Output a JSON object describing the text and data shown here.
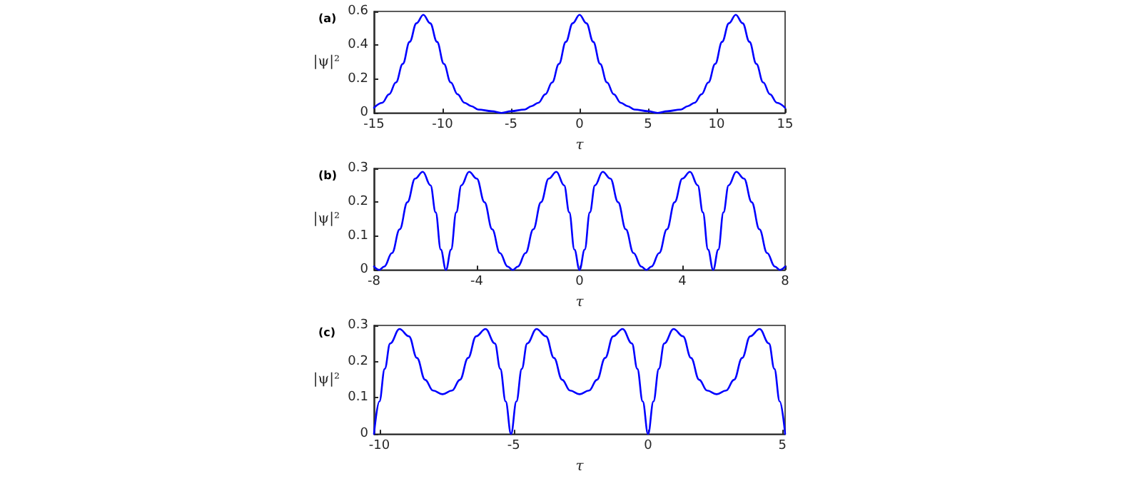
{
  "chart_data": [
    {
      "type": "line",
      "title": "(a)",
      "xlabel": "τ",
      "ylabel": "|ψ|²",
      "grid": false,
      "marker": "none",
      "line_style": "solid",
      "xlim": [
        -15,
        15
      ],
      "ylim": [
        0,
        0.6
      ],
      "xticks": [
        -15,
        -10,
        -5,
        0,
        5,
        10,
        15
      ],
      "yticks": [
        0,
        0.2,
        0.4,
        0.6
      ],
      "series": [
        {
          "color": "#0000ff",
          "x": [
            -15,
            -14.4,
            -13.9,
            -13.4,
            -12.9,
            -12.4,
            -11.9,
            -11.4,
            -10.9,
            -10.4,
            -9.9,
            -9.4,
            -8.9,
            -8.4,
            -7.9,
            -7.4,
            -6.4,
            -5.7,
            -5,
            -4,
            -3.5,
            -3,
            -2.5,
            -2,
            -1.5,
            -1,
            -0.5,
            0,
            0.5,
            1,
            1.5,
            2,
            2.5,
            3,
            3.5,
            4,
            5,
            5.7,
            6.4,
            7.4,
            7.9,
            8.4,
            8.9,
            9.4,
            9.9,
            10.4,
            10.9,
            11.4,
            11.9,
            12.4,
            12.9,
            13.4,
            13.9,
            14.4,
            15
          ],
          "values": [
            0.03,
            0.06,
            0.11,
            0.18,
            0.29,
            0.42,
            0.53,
            0.58,
            0.53,
            0.42,
            0.29,
            0.18,
            0.11,
            0.06,
            0.04,
            0.02,
            0.01,
            0,
            0.01,
            0.02,
            0.04,
            0.06,
            0.11,
            0.18,
            0.29,
            0.42,
            0.53,
            0.58,
            0.53,
            0.42,
            0.29,
            0.18,
            0.11,
            0.06,
            0.04,
            0.02,
            0.01,
            0,
            0.01,
            0.02,
            0.04,
            0.06,
            0.11,
            0.18,
            0.29,
            0.42,
            0.53,
            0.58,
            0.53,
            0.42,
            0.29,
            0.18,
            0.11,
            0.06,
            0.03
          ]
        }
      ]
    },
    {
      "type": "line",
      "title": "(b)",
      "xlabel": "τ",
      "ylabel": "|ψ|²",
      "grid": false,
      "marker": "none",
      "line_style": "solid",
      "xlim": [
        -8,
        8
      ],
      "ylim": [
        0,
        0.3
      ],
      "xticks": [
        -8,
        -4,
        0,
        4,
        8
      ],
      "yticks": [
        0,
        0.1,
        0.2,
        0.3
      ],
      "series": [
        {
          "color": "#0000ff",
          "x": [
            -8,
            -7.8,
            -7.6,
            -7.3,
            -7,
            -6.7,
            -6.4,
            -6.1,
            -5.8,
            -5.6,
            -5.4,
            -5.2,
            -5,
            -4.8,
            -4.6,
            -4.3,
            -4,
            -3.7,
            -3.4,
            -3.1,
            -2.8,
            -2.6,
            -2.4,
            -2.1,
            -1.8,
            -1.5,
            -1.2,
            -0.9,
            -0.6,
            -0.4,
            -0.2,
            0,
            0.2,
            0.4,
            0.6,
            0.9,
            1.2,
            1.5,
            1.8,
            2.1,
            2.4,
            2.6,
            2.8,
            3.1,
            3.4,
            3.7,
            4,
            4.3,
            4.6,
            4.8,
            5,
            5.2,
            5.4,
            5.6,
            5.8,
            6.1,
            6.4,
            6.7,
            7,
            7.3,
            7.6,
            7.8,
            8
          ],
          "values": [
            0.01,
            0,
            0.01,
            0.05,
            0.12,
            0.2,
            0.27,
            0.29,
            0.25,
            0.17,
            0.06,
            0,
            0.06,
            0.17,
            0.25,
            0.29,
            0.27,
            0.2,
            0.12,
            0.05,
            0.01,
            0,
            0.01,
            0.05,
            0.12,
            0.2,
            0.27,
            0.29,
            0.25,
            0.17,
            0.06,
            0,
            0.06,
            0.17,
            0.25,
            0.29,
            0.27,
            0.2,
            0.12,
            0.05,
            0.01,
            0,
            0.01,
            0.05,
            0.12,
            0.2,
            0.27,
            0.29,
            0.25,
            0.17,
            0.06,
            0,
            0.06,
            0.17,
            0.25,
            0.29,
            0.27,
            0.2,
            0.12,
            0.05,
            0.01,
            0,
            0.01
          ]
        }
      ]
    },
    {
      "type": "line",
      "title": "(c)",
      "xlabel": "τ",
      "ylabel": "|ψ|²",
      "grid": false,
      "marker": "none",
      "line_style": "solid",
      "xlim": [
        -10.2,
        5.1
      ],
      "ylim": [
        0,
        0.3
      ],
      "xticks": [
        -10,
        -5,
        0,
        5
      ],
      "yticks": [
        0,
        0.1,
        0.2,
        0.3
      ],
      "series": [
        {
          "color": "#0000ff",
          "x": [
            -10.2,
            -10,
            -9.8,
            -9.6,
            -9.25,
            -8.9,
            -8.6,
            -8.3,
            -8,
            -7.65,
            -7.3,
            -7,
            -6.7,
            -6.4,
            -6.05,
            -5.7,
            -5.5,
            -5.3,
            -5.1,
            -4.9,
            -4.7,
            -4.5,
            -4.15,
            -3.8,
            -3.5,
            -3.2,
            -2.9,
            -2.55,
            -2.2,
            -1.9,
            -1.6,
            -1.3,
            -0.95,
            -0.6,
            -0.4,
            -0.2,
            0,
            0.2,
            0.4,
            0.6,
            0.95,
            1.3,
            1.6,
            1.9,
            2.2,
            2.55,
            2.9,
            3.2,
            3.5,
            3.8,
            4.15,
            4.5,
            4.7,
            4.9,
            5.1
          ],
          "values": [
            0,
            0.09,
            0.18,
            0.25,
            0.29,
            0.27,
            0.21,
            0.15,
            0.12,
            0.11,
            0.12,
            0.15,
            0.21,
            0.27,
            0.29,
            0.25,
            0.18,
            0.09,
            0,
            0.09,
            0.18,
            0.25,
            0.29,
            0.27,
            0.21,
            0.15,
            0.12,
            0.11,
            0.12,
            0.15,
            0.21,
            0.27,
            0.29,
            0.25,
            0.18,
            0.09,
            0,
            0.09,
            0.18,
            0.25,
            0.29,
            0.27,
            0.21,
            0.15,
            0.12,
            0.11,
            0.12,
            0.15,
            0.21,
            0.27,
            0.29,
            0.25,
            0.18,
            0.09,
            0
          ]
        }
      ]
    }
  ]
}
